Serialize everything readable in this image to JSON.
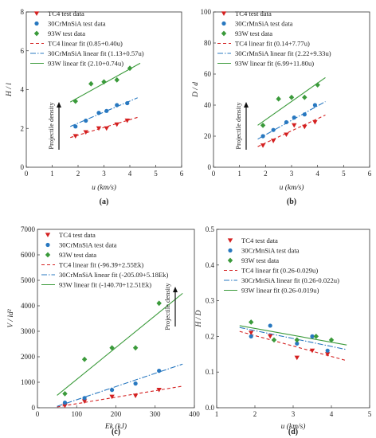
{
  "chart_data": [
    {
      "panel": "(a)",
      "type": "scatter",
      "ylabel_text": "H / l",
      "xlabel_text": "u (km/s)",
      "xlim": [
        0,
        6
      ],
      "ylim": [
        0,
        8
      ],
      "xticks": [
        0,
        1,
        2,
        3,
        4,
        5,
        6
      ],
      "yticks": [
        0,
        2,
        4,
        6,
        8
      ],
      "annotation": "Projectile density",
      "legend_position": "top-left",
      "series": [
        {
          "name": "TC4 test data",
          "color": "#d42020",
          "marker": "tri-down",
          "x": [
            1.9,
            2.3,
            2.8,
            3.1,
            3.5,
            3.9
          ],
          "y": [
            1.6,
            1.8,
            2.0,
            2.0,
            2.2,
            2.4
          ]
        },
        {
          "name": "30CrMnSiA test data",
          "color": "#2878c0",
          "marker": "circle",
          "x": [
            1.9,
            2.3,
            2.8,
            3.1,
            3.5,
            3.9
          ],
          "y": [
            2.1,
            2.4,
            2.8,
            2.9,
            3.2,
            3.3
          ]
        },
        {
          "name": "93W test data",
          "color": "#3a9a3a",
          "marker": "diamond",
          "x": [
            1.9,
            2.5,
            3.0,
            3.5,
            4.0
          ],
          "y": [
            3.4,
            4.3,
            4.4,
            4.5,
            5.1
          ]
        }
      ],
      "fits": [
        {
          "name": "TC4 linear fit (0.85+0.40u)",
          "color": "#d42020",
          "dash": "4,3",
          "x": [
            1.7,
            4.3
          ],
          "y": [
            1.53,
            2.57
          ]
        },
        {
          "name": "30CrMnSiA linear fit (1.13+0.57u)",
          "color": "#2878c0",
          "dash": "7,2,1.5,2",
          "x": [
            1.7,
            4.3
          ],
          "y": [
            2.1,
            3.58
          ]
        },
        {
          "name": "93W linear fit (2.10+0.74u)",
          "color": "#3a9a3a",
          "dash": "",
          "x": [
            1.7,
            4.4
          ],
          "y": [
            3.36,
            5.36
          ]
        }
      ],
      "caption": "(a)"
    },
    {
      "panel": "(b)",
      "type": "scatter",
      "ylabel_text": "D / d",
      "xlabel_text": "u (km/s)",
      "xlim": [
        0,
        6
      ],
      "ylim": [
        0,
        100
      ],
      "xticks": [
        0,
        1,
        2,
        3,
        4,
        5,
        6
      ],
      "yticks": [
        0,
        20,
        40,
        60,
        80,
        100
      ],
      "annotation": "Projectile density",
      "legend_position": "top-left",
      "series": [
        {
          "name": "TC4 test data",
          "color": "#d42020",
          "marker": "tri-down",
          "x": [
            1.9,
            2.3,
            2.8,
            3.1,
            3.5,
            3.9
          ],
          "y": [
            14,
            17,
            21,
            27,
            26,
            29
          ]
        },
        {
          "name": "30CrMnSiA test data",
          "color": "#2878c0",
          "marker": "circle",
          "x": [
            1.9,
            2.3,
            2.8,
            3.1,
            3.5,
            3.9
          ],
          "y": [
            20,
            24,
            29,
            32,
            34,
            40
          ]
        },
        {
          "name": "93W test data",
          "color": "#3a9a3a",
          "marker": "diamond",
          "x": [
            1.9,
            2.5,
            3.0,
            3.5,
            4.0
          ],
          "y": [
            27,
            44,
            45,
            45,
            53
          ]
        }
      ],
      "fits": [
        {
          "name": "TC4 linear fit (0.14+7.77u)",
          "color": "#d42020",
          "dash": "4,3",
          "x": [
            1.7,
            4.3
          ],
          "y": [
            13.3,
            33.6
          ]
        },
        {
          "name": "30CrMnSiA linear fit (2.22+9.33u)",
          "color": "#2878c0",
          "dash": "7,2,1.5,2",
          "x": [
            1.7,
            4.3
          ],
          "y": [
            18.1,
            42.3
          ]
        },
        {
          "name": "93W linear fit (6.99+11.80u)",
          "color": "#3a9a3a",
          "dash": "",
          "x": [
            1.7,
            4.3
          ],
          "y": [
            27.0,
            57.7
          ]
        }
      ],
      "caption": "(b)"
    },
    {
      "panel": "(c)",
      "type": "scatter",
      "ylabel_text": "V / ld²",
      "xlabel_text": "Ek (kJ)",
      "xlim": [
        0,
        400
      ],
      "ylim": [
        0,
        7000
      ],
      "xticks": [
        0,
        100,
        200,
        300,
        400
      ],
      "yticks": [
        0,
        1000,
        2000,
        3000,
        4000,
        5000,
        6000,
        7000
      ],
      "annotation": "Projectile density",
      "legend_position": "top-left",
      "series": [
        {
          "name": "TC4 test data",
          "color": "#d42020",
          "marker": "tri-down",
          "x": [
            70,
            120,
            190,
            250,
            310
          ],
          "y": [
            80,
            250,
            430,
            470,
            700
          ]
        },
        {
          "name": "30CrMnSiA test data",
          "color": "#2878c0",
          "marker": "circle",
          "x": [
            70,
            120,
            190,
            250,
            310
          ],
          "y": [
            200,
            380,
            700,
            950,
            1450
          ]
        },
        {
          "name": "93W test data",
          "color": "#3a9a3a",
          "marker": "diamond",
          "x": [
            70,
            120,
            190,
            250,
            310
          ],
          "y": [
            550,
            1900,
            2350,
            2350,
            4100
          ]
        }
      ],
      "fits": [
        {
          "name": "TC4 linear fit (-96.39+2.55Ek)",
          "color": "#d42020",
          "dash": "4,3",
          "x": [
            50,
            370
          ],
          "y": [
            31,
            847
          ]
        },
        {
          "name": "30CrMnSiA linear fit (-205.09+5.18Ek)",
          "color": "#2878c0",
          "dash": "7,2,1.5,2",
          "x": [
            50,
            370
          ],
          "y": [
            54,
            1712
          ]
        },
        {
          "name": "93W linear fit (-140.70+12.51Ek)",
          "color": "#3a9a3a",
          "dash": "",
          "x": [
            50,
            370
          ],
          "y": [
            485,
            4488
          ]
        }
      ],
      "caption": "(c)"
    },
    {
      "panel": "(d)",
      "type": "scatter",
      "ylabel_text": "H / D",
      "xlabel_text": "u (km/s)",
      "xlim": [
        1,
        5
      ],
      "ylim": [
        0,
        0.5
      ],
      "xticks": [
        1,
        2,
        3,
        4,
        5
      ],
      "yticks": [
        0.0,
        0.1,
        0.2,
        0.3,
        0.4,
        0.5
      ],
      "legend_position": "top-left",
      "series": [
        {
          "name": "TC4 test data",
          "color": "#d42020",
          "marker": "tri-down",
          "x": [
            1.9,
            2.4,
            3.1,
            3.5,
            3.9
          ],
          "y": [
            0.21,
            0.2,
            0.14,
            0.16,
            0.15
          ]
        },
        {
          "name": "30CrMnSiA test data",
          "color": "#2878c0",
          "marker": "circle",
          "x": [
            1.9,
            2.4,
            3.1,
            3.5,
            3.9
          ],
          "y": [
            0.2,
            0.23,
            0.18,
            0.2,
            0.16
          ]
        },
        {
          "name": "93W test data",
          "color": "#3a9a3a",
          "marker": "diamond",
          "x": [
            1.9,
            2.5,
            3.1,
            3.6,
            4.0
          ],
          "y": [
            0.24,
            0.19,
            0.19,
            0.2,
            0.19
          ]
        }
      ],
      "fits": [
        {
          "name": "TC4 linear fit (0.26-0.029u)",
          "color": "#d42020",
          "dash": "4,3",
          "x": [
            1.6,
            4.4
          ],
          "y": [
            0.214,
            0.132
          ]
        },
        {
          "name": "30CrMnSiA linear fit (0.26-0.022u)",
          "color": "#2878c0",
          "dash": "7,2,1.5,2",
          "x": [
            1.6,
            4.4
          ],
          "y": [
            0.225,
            0.163
          ]
        },
        {
          "name": "93W linear fit (0.26-0.019u)",
          "color": "#3a9a3a",
          "dash": "",
          "x": [
            1.6,
            4.4
          ],
          "y": [
            0.23,
            0.176
          ]
        }
      ],
      "caption": "(d)"
    }
  ]
}
